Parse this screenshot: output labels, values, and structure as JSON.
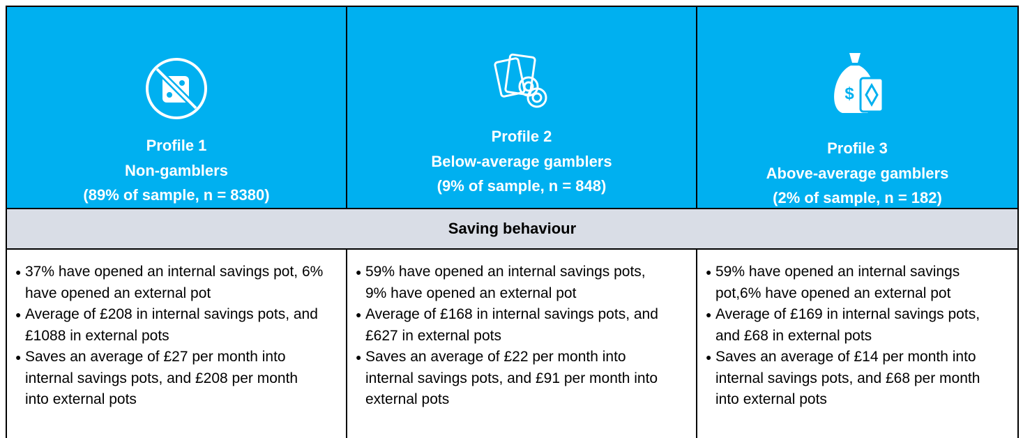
{
  "table": {
    "profiles": [
      {
        "title": [
          "Profile 1",
          "Non-gamblers",
          "(89% of sample, n = 8380)"
        ]
      },
      {
        "title": [
          "Profile 2",
          "Below-average gamblers",
          "(9% of sample, n = 848)"
        ]
      },
      {
        "title": [
          "Profile 3",
          "Above-average gamblers",
          "(2% of sample, n = 182)"
        ]
      }
    ],
    "section": "Saving behaviour",
    "bullets": [
      [
        "37% have opened an internal savings pot, 6% have opened an external pot",
        "Average of £208 in internal savings pots, and £1088 in external pots",
        "Saves an average of £27 per month into internal savings pots, and £208 per month into external pots"
      ],
      [
        "59% have opened an internal savings pots, 9% have opened an external pot",
        "Average of £168 in internal savings pots, and £627 in external pots",
        "Saves an average of £22 per month into internal savings pots, and £91 per month into external pots"
      ],
      [
        "59% have opened an internal savings pot,6% have opened an external pot",
        "Average of £169 in internal savings pots, and £68 in external pots",
        "Saves an average of £14 per month into internal savings pots, and £68 per month into external pots"
      ]
    ]
  }
}
